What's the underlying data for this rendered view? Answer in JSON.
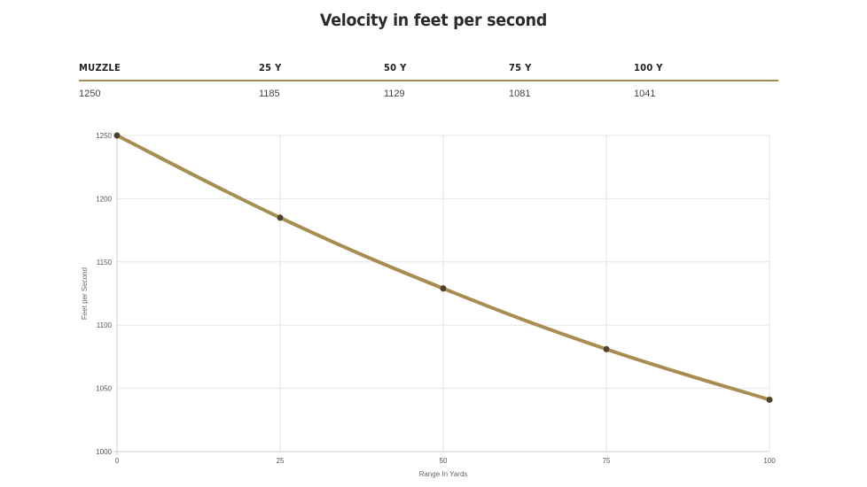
{
  "title": "Velocity in feet per second",
  "table": {
    "headers": [
      "MUZZLE",
      "25 Y",
      "50 Y",
      "75 Y",
      "100 Y"
    ],
    "values": [
      "1250",
      "1185",
      "1129",
      "1081",
      "1041"
    ]
  },
  "colors": {
    "line": "#a88c50",
    "point": "#4a4038",
    "grid": "#e6e6e6",
    "rule": "#a08a55"
  },
  "chart_data": {
    "type": "line",
    "title": "Velocity in feet per second",
    "xlabel": "Range In Yards",
    "ylabel": "Feet per Second",
    "x": [
      0,
      25,
      50,
      75,
      100
    ],
    "series": [
      {
        "name": "Velocity",
        "values": [
          1250,
          1185,
          1129,
          1081,
          1041
        ]
      }
    ],
    "xlim": [
      0,
      100
    ],
    "ylim": [
      1000,
      1250
    ],
    "xticks": [
      0,
      25,
      50,
      75,
      100
    ],
    "yticks": [
      1000,
      1050,
      1100,
      1150,
      1200,
      1250
    ],
    "grid": true
  }
}
